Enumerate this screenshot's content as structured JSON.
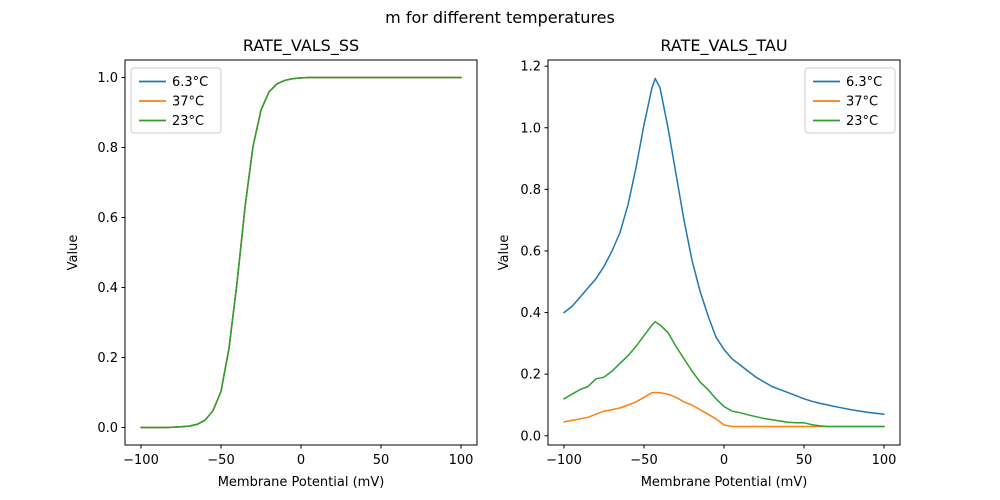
{
  "figure": {
    "title": "m for different temperatures",
    "background_color": "#ffffff",
    "text_color": "#000000",
    "axis_color": "#000000",
    "legend_border_color": "#cccccc"
  },
  "chart_data": [
    {
      "type": "line",
      "title": "RATE_VALS_SS",
      "xlabel": "Membrane Potential (mV)",
      "ylabel": "Value",
      "xlim": [
        -110,
        110
      ],
      "ylim": [
        -0.05,
        1.05
      ],
      "xticks": [
        -100,
        -50,
        0,
        50,
        100
      ],
      "yticks": [
        0.0,
        0.2,
        0.4,
        0.6,
        0.8,
        1.0
      ],
      "grid": false,
      "legend_position": "upper-left",
      "note": "all three temperature curves coincide exactly; only the last-drawn green 23°C curve is visible",
      "x": [
        -100,
        -95,
        -90,
        -85,
        -80,
        -75,
        -70,
        -65,
        -60,
        -55,
        -50,
        -45,
        -40,
        -35,
        -30,
        -25,
        -20,
        -15,
        -10,
        -5,
        0,
        5,
        10,
        15,
        20,
        25,
        30,
        35,
        40,
        45,
        50,
        55,
        60,
        65,
        70,
        75,
        80,
        85,
        90,
        95,
        100
      ],
      "series": [
        {
          "name": "6.3°C",
          "color": "#1f77b4",
          "values": [
            0.0,
            0.0,
            0.0,
            0.0,
            0.001,
            0.002,
            0.004,
            0.009,
            0.021,
            0.048,
            0.103,
            0.226,
            0.413,
            0.629,
            0.803,
            0.907,
            0.959,
            0.982,
            0.992,
            0.997,
            0.999,
            1.0,
            1.0,
            1.0,
            1.0,
            1.0,
            1.0,
            1.0,
            1.0,
            1.0,
            1.0,
            1.0,
            1.0,
            1.0,
            1.0,
            1.0,
            1.0,
            1.0,
            1.0,
            1.0,
            1.0
          ]
        },
        {
          "name": "37°C",
          "color": "#ff7f0e",
          "values": [
            0.0,
            0.0,
            0.0,
            0.0,
            0.001,
            0.002,
            0.004,
            0.009,
            0.021,
            0.048,
            0.103,
            0.226,
            0.413,
            0.629,
            0.803,
            0.907,
            0.959,
            0.982,
            0.992,
            0.997,
            0.999,
            1.0,
            1.0,
            1.0,
            1.0,
            1.0,
            1.0,
            1.0,
            1.0,
            1.0,
            1.0,
            1.0,
            1.0,
            1.0,
            1.0,
            1.0,
            1.0,
            1.0,
            1.0,
            1.0,
            1.0
          ]
        },
        {
          "name": "23°C",
          "color": "#2ca02c",
          "values": [
            0.0,
            0.0,
            0.0,
            0.0,
            0.001,
            0.002,
            0.004,
            0.009,
            0.021,
            0.048,
            0.103,
            0.226,
            0.413,
            0.629,
            0.803,
            0.907,
            0.959,
            0.982,
            0.992,
            0.997,
            0.999,
            1.0,
            1.0,
            1.0,
            1.0,
            1.0,
            1.0,
            1.0,
            1.0,
            1.0,
            1.0,
            1.0,
            1.0,
            1.0,
            1.0,
            1.0,
            1.0,
            1.0,
            1.0,
            1.0,
            1.0
          ]
        }
      ]
    },
    {
      "type": "line",
      "title": "RATE_VALS_TAU",
      "xlabel": "Membrane Potential (mV)",
      "ylabel": "Value",
      "xlim": [
        -110,
        110
      ],
      "ylim": [
        -0.03,
        1.22
      ],
      "xticks": [
        -100,
        -50,
        0,
        50,
        100
      ],
      "yticks": [
        0.0,
        0.2,
        0.4,
        0.6,
        0.8,
        1.0,
        1.2
      ],
      "grid": false,
      "legend_position": "upper-right",
      "note": "bell-shaped time-constant curves peaking near -43 mV",
      "x": [
        -100,
        -95,
        -90,
        -85,
        -80,
        -75,
        -70,
        -65,
        -60,
        -55,
        -50,
        -45,
        -43,
        -40,
        -35,
        -30,
        -25,
        -20,
        -15,
        -10,
        -5,
        0,
        5,
        10,
        15,
        20,
        25,
        30,
        35,
        40,
        45,
        50,
        55,
        60,
        65,
        70,
        75,
        80,
        85,
        90,
        95,
        100
      ],
      "series": [
        {
          "name": "6.3°C",
          "color": "#1f77b4",
          "values": [
            0.4,
            0.42,
            0.45,
            0.48,
            0.51,
            0.55,
            0.6,
            0.66,
            0.75,
            0.87,
            1.01,
            1.13,
            1.16,
            1.13,
            1.0,
            0.85,
            0.7,
            0.57,
            0.47,
            0.39,
            0.32,
            0.28,
            0.25,
            0.23,
            0.21,
            0.19,
            0.175,
            0.16,
            0.15,
            0.14,
            0.13,
            0.12,
            0.112,
            0.105,
            0.1,
            0.094,
            0.089,
            0.084,
            0.08,
            0.076,
            0.073,
            0.07
          ]
        },
        {
          "name": "37°C",
          "color": "#ff7f0e",
          "values": [
            0.045,
            0.05,
            0.055,
            0.06,
            0.07,
            0.08,
            0.085,
            0.09,
            0.1,
            0.11,
            0.125,
            0.14,
            0.14,
            0.14,
            0.135,
            0.125,
            0.11,
            0.1,
            0.085,
            0.07,
            0.055,
            0.035,
            0.03,
            0.03,
            0.03,
            0.03,
            0.03,
            0.03,
            0.03,
            0.03,
            0.03,
            0.03,
            0.03,
            0.03,
            0.03,
            0.03,
            0.03,
            0.03,
            0.03,
            0.03,
            0.03,
            0.03
          ]
        },
        {
          "name": "23°C",
          "color": "#2ca02c",
          "values": [
            0.12,
            0.135,
            0.15,
            0.16,
            0.185,
            0.19,
            0.21,
            0.235,
            0.26,
            0.29,
            0.325,
            0.36,
            0.37,
            0.36,
            0.335,
            0.29,
            0.25,
            0.21,
            0.175,
            0.15,
            0.12,
            0.095,
            0.08,
            0.075,
            0.068,
            0.062,
            0.056,
            0.052,
            0.048,
            0.044,
            0.042,
            0.042,
            0.036,
            0.032,
            0.03,
            0.03,
            0.03,
            0.03,
            0.03,
            0.03,
            0.03,
            0.03
          ]
        }
      ]
    }
  ]
}
